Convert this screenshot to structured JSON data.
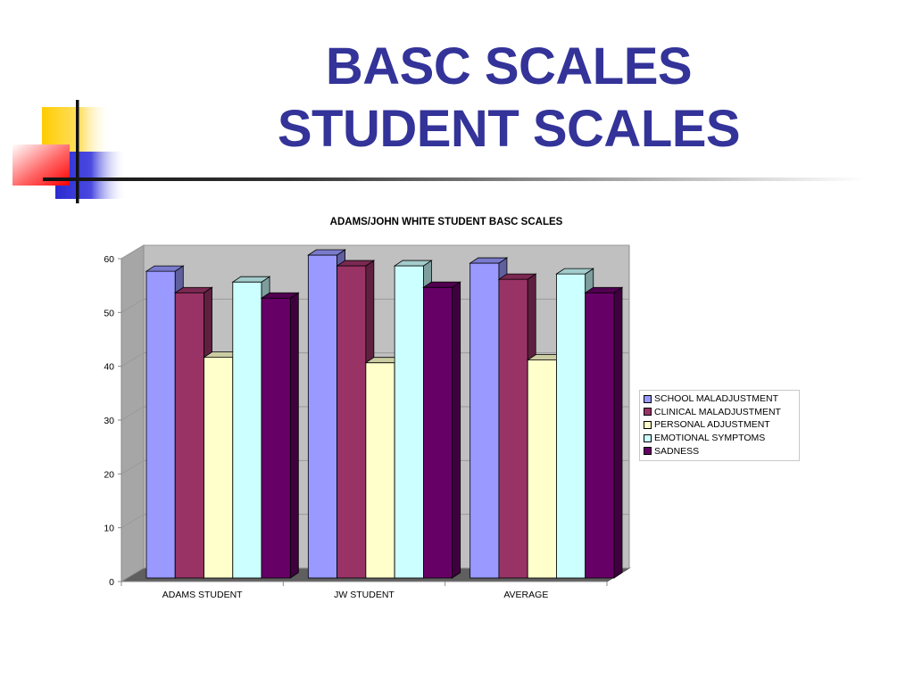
{
  "slide": {
    "title_line1": "BASC SCALES",
    "title_line2": "STUDENT SCALES"
  },
  "chart_data": {
    "type": "bar",
    "title": "ADAMS/JOHN WHITE STUDENT BASC SCALES",
    "categories": [
      "ADAMS STUDENT",
      "JW STUDENT",
      "AVERAGE"
    ],
    "series": [
      {
        "name": "SCHOOL MALADJUSTMENT",
        "color": "#9999FF",
        "values": [
          57,
          60,
          58.5
        ]
      },
      {
        "name": "CLINICAL MALADJUSTMENT",
        "color": "#993366",
        "values": [
          53,
          58,
          55.5
        ]
      },
      {
        "name": "PERSONAL ADJUSTMENT",
        "color": "#FFFFCC",
        "values": [
          41,
          40,
          40.5
        ]
      },
      {
        "name": "EMOTIONAL SYMPTOMS",
        "color": "#CCFFFF",
        "values": [
          55,
          58,
          56.5
        ]
      },
      {
        "name": "SADNESS",
        "color": "#660066",
        "values": [
          52,
          54,
          53
        ]
      }
    ],
    "ylim": [
      0,
      60
    ],
    "yticks": [
      "0",
      "10",
      "20",
      "30",
      "40",
      "50",
      "60"
    ],
    "grid": true,
    "legend_position": "right",
    "style": "3d-clustered-column"
  }
}
